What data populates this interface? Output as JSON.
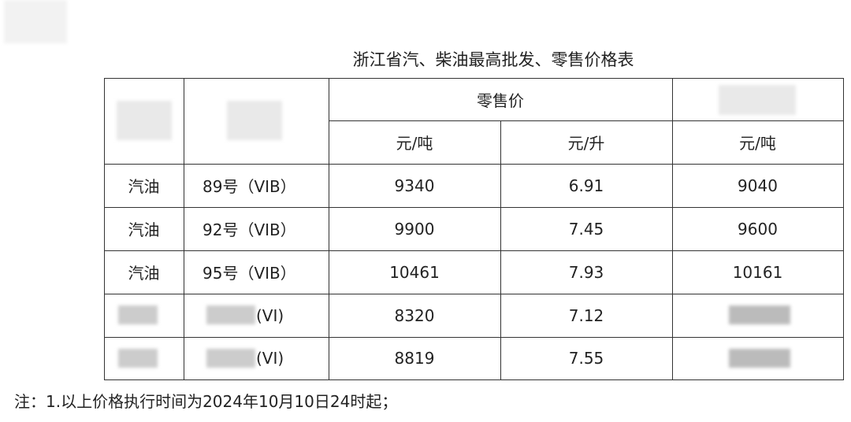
{
  "title": "浙江省汽、柴油最高批发、零售价格表",
  "table": {
    "header": {
      "retail": "零售价"
    },
    "units": [
      "元/吨",
      "元/升",
      "元/吨"
    ],
    "rows": [
      {
        "product": "汽油",
        "grade": "89号（VIB）",
        "retail_ton": 9340,
        "retail_liter": 6.91,
        "wholesale": 9040
      },
      {
        "product": "汽油",
        "grade": "92号（VIB）",
        "retail_ton": 9900,
        "retail_liter": 7.45,
        "wholesale": 9600
      },
      {
        "product": "汽油",
        "grade": "95号（VIB）",
        "retail_ton": 10461,
        "retail_liter": 7.93,
        "wholesale": 10161
      },
      {
        "grade": "(VI)",
        "retail_ton": 8320,
        "retail_liter": 7.12
      },
      {
        "grade": "(VI)",
        "retail_ton": 8819,
        "retail_liter": 7.55
      }
    ]
  },
  "note": "注：1.以上价格执行时间为2024年10月10日24时起；"
}
